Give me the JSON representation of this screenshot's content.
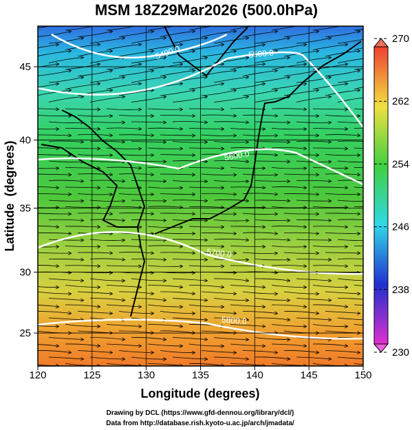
{
  "title": "MSM 18Z29Mar2026 (500.0hPa)",
  "x_axis": {
    "label": "Longitude (degrees)",
    "lim": [
      120,
      150
    ],
    "ticks": [
      120,
      125,
      130,
      135,
      140,
      145,
      150
    ]
  },
  "y_axis": {
    "label": "Latitude  (degrees)",
    "lim": [
      22.2,
      47.6
    ],
    "projection": "mercator",
    "ticks": [
      25,
      30,
      35,
      40,
      45
    ]
  },
  "colorbar": {
    "lim": [
      230,
      270
    ],
    "ticks": [
      230,
      238,
      246,
      254,
      262,
      270
    ]
  },
  "contour_labels": [
    "5400.0",
    "5500.0",
    "5600.0",
    "5700.0",
    "5800.0"
  ],
  "footer": [
    "Drawing by DCL (https://www.gfd-dennou.org/library/dcl/)",
    "Data from http://database.rish.kyoto-u.ac.jp/arch/jmadata/"
  ]
}
